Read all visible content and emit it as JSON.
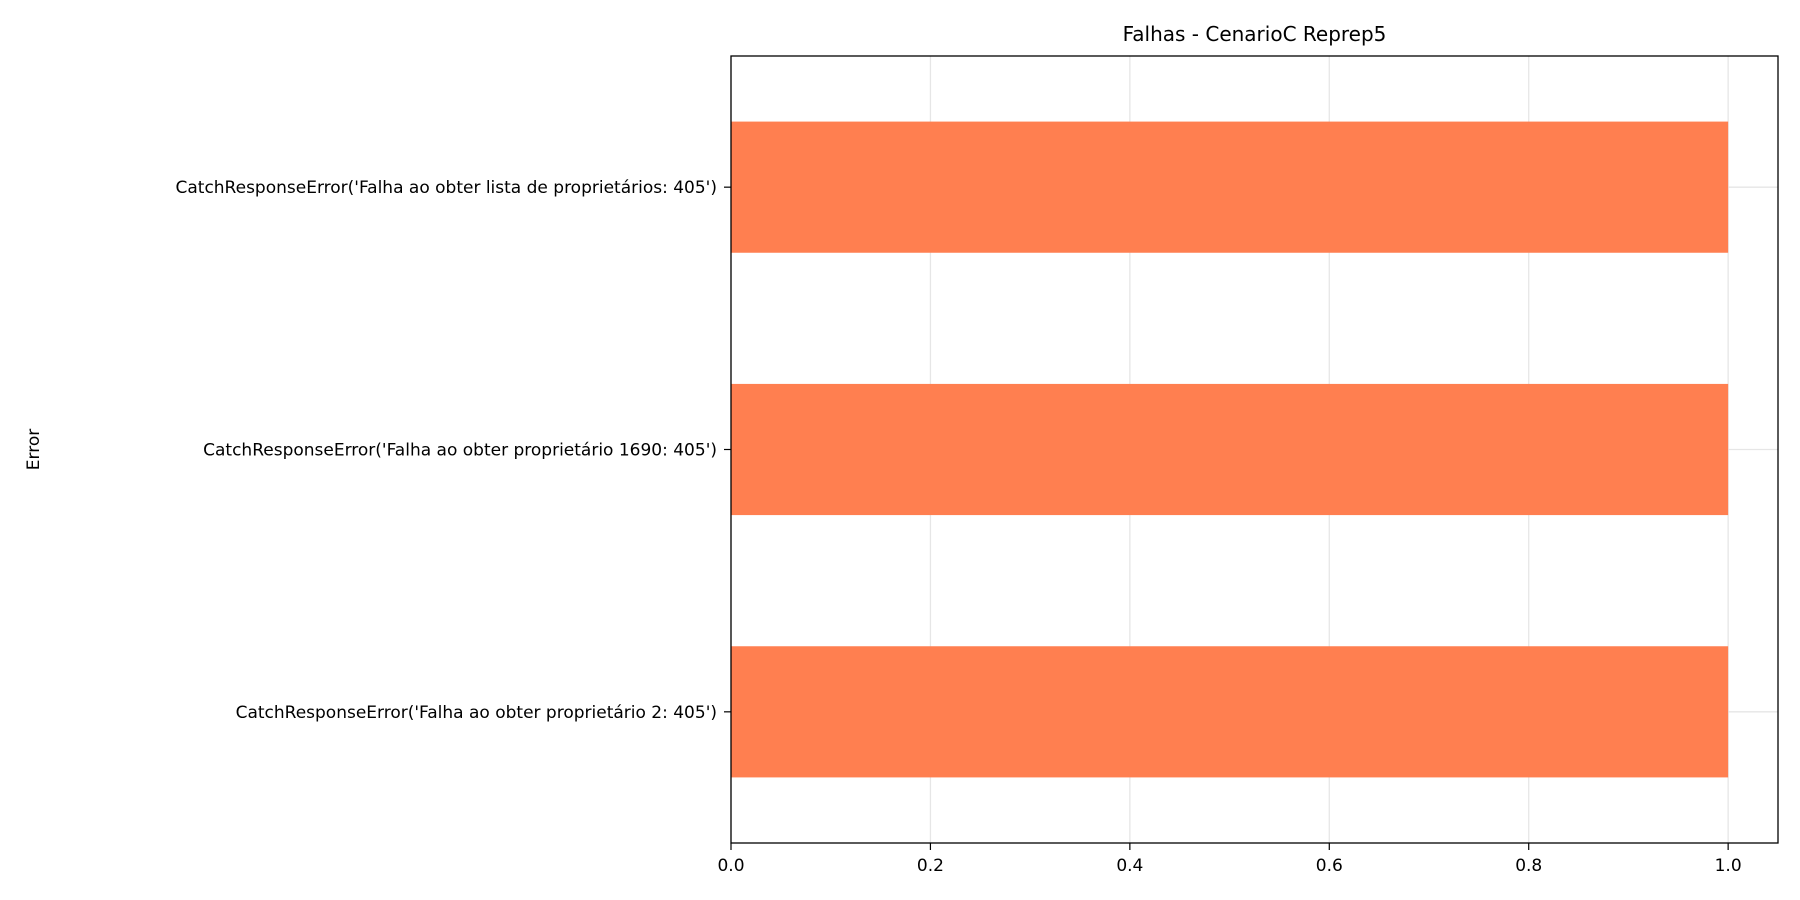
{
  "chart_data": {
    "type": "bar",
    "orientation": "horizontal",
    "title": "Falhas - CenarioC Reprep5",
    "xlabel": "",
    "ylabel": "Error",
    "categories": [
      "CatchResponseError('Falha ao obter lista de proprietários: 405')",
      "CatchResponseError('Falha ao obter proprietário 1690: 405')",
      "CatchResponseError('Falha ao obter proprietário 2: 405')"
    ],
    "values": [
      1,
      1,
      1
    ],
    "xlim": [
      0,
      1.05
    ],
    "xticks": [
      "0.0",
      "0.2",
      "0.4",
      "0.6",
      "0.8",
      "1.0"
    ],
    "xtick_values": [
      0,
      0.2,
      0.4,
      0.6,
      0.8,
      1.0
    ],
    "grid": true,
    "bar_color": "#ff7f50",
    "grid_color": "#e6e6e6"
  }
}
